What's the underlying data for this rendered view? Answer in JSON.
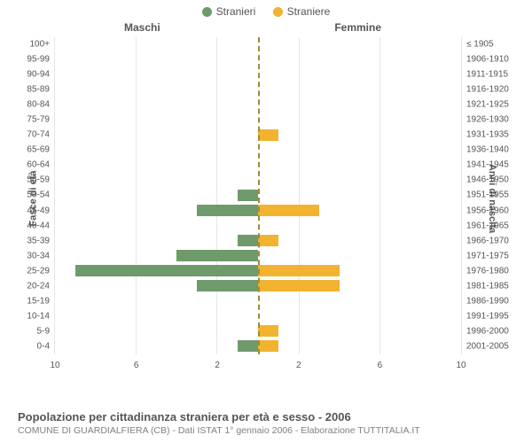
{
  "legend": {
    "male": {
      "label": "Stranieri",
      "color": "#6f9a6c"
    },
    "female": {
      "label": "Straniere",
      "color": "#f2b331"
    }
  },
  "columns": {
    "left": "Maschi",
    "right": "Femmine"
  },
  "axis_titles": {
    "left": "Fasce di età",
    "right": "Anni di nascita"
  },
  "chart": {
    "type": "population-pyramid",
    "xmax": 10,
    "xticks": [
      10,
      6,
      2,
      2,
      6,
      10
    ],
    "grid_color": "#e6e6e6",
    "center_line_color": "#9e8b3b",
    "background_color": "#ffffff",
    "bar_height_ratio": 0.76,
    "age_labels": [
      "100+",
      "95-99",
      "90-94",
      "85-89",
      "80-84",
      "75-79",
      "70-74",
      "65-69",
      "60-64",
      "55-59",
      "50-54",
      "45-49",
      "40-44",
      "35-39",
      "30-34",
      "25-29",
      "20-24",
      "15-19",
      "10-14",
      "5-9",
      "0-4"
    ],
    "year_labels": [
      "≤ 1905",
      "1906-1910",
      "1911-1915",
      "1916-1920",
      "1921-1925",
      "1926-1930",
      "1931-1935",
      "1936-1940",
      "1941-1945",
      "1946-1950",
      "1951-1955",
      "1956-1960",
      "1961-1965",
      "1966-1970",
      "1971-1975",
      "1976-1980",
      "1981-1985",
      "1986-1990",
      "1991-1995",
      "1996-2000",
      "2001-2005"
    ],
    "male": [
      0,
      0,
      0,
      0,
      0,
      0,
      0,
      0,
      0,
      0,
      1,
      3,
      0,
      1,
      4,
      9,
      3,
      0,
      0,
      0,
      1
    ],
    "female": [
      0,
      0,
      0,
      0,
      0,
      0,
      1,
      0,
      0,
      0,
      0,
      3,
      0,
      1,
      0,
      4,
      4,
      0,
      0,
      1,
      1
    ]
  },
  "footer": {
    "title": "Popolazione per cittadinanza straniera per età e sesso - 2006",
    "subtitle": "COMUNE DI GUARDIALFIERA (CB) - Dati ISTAT 1° gennaio 2006 - Elaborazione TUTTITALIA.IT"
  }
}
